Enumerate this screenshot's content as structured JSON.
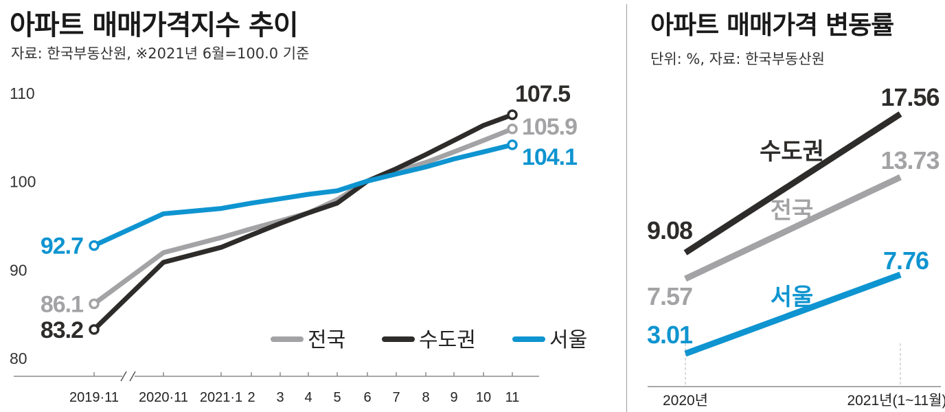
{
  "left_chart": {
    "title": "아파트 매매가격지수 추이",
    "subtitle": "자료: 한국부동산원, ※2021년 6월=100.0 기준"
  },
  "right_chart": {
    "title": "아파트 매매가격 변동률",
    "subtitle": "단위: %, 자료: 한국부동산원"
  },
  "chart_data": [
    {
      "type": "line",
      "title": "아파트 매매가격지수 추이",
      "categories": [
        "2019·11",
        "2020·11",
        "2021·1",
        "2",
        "3",
        "4",
        "5",
        "6",
        "7",
        "8",
        "9",
        "10",
        "11"
      ],
      "ylim": [
        80,
        110
      ],
      "yticks": [
        "80",
        "90",
        "100",
        "110"
      ],
      "grid": false,
      "legend_position": "bottom-right",
      "series": [
        {
          "name": "전국",
          "color": "#a3a3a5",
          "values": [
            86.1,
            91.9,
            93.6,
            94.6,
            95.5,
            96.4,
            97.9,
            100.0,
            101.1,
            102.1,
            103.3,
            104.6,
            105.9
          ],
          "start_label": "86.1",
          "end_label": "105.9"
        },
        {
          "name": "수도권",
          "color": "#2e2c2b",
          "values": [
            83.2,
            90.8,
            92.5,
            93.9,
            95.2,
            96.4,
            97.5,
            100.0,
            101.4,
            103.0,
            104.6,
            106.3,
            107.5
          ],
          "start_label": "83.2",
          "end_label": "107.5"
        },
        {
          "name": "서울",
          "color": "#0e94d0",
          "values": [
            92.7,
            96.3,
            96.9,
            97.5,
            98.0,
            98.5,
            98.9,
            100.0,
            100.8,
            101.6,
            102.5,
            103.3,
            104.1
          ],
          "start_label": "92.7",
          "end_label": "104.1"
        }
      ],
      "legend": [
        "전국",
        "수도권",
        "서울"
      ]
    },
    {
      "type": "line",
      "title": "아파트 매매가격 변동률",
      "unit": "%",
      "categories": [
        "2020년",
        "2021년(1~11월)"
      ],
      "series": [
        {
          "name": "수도권",
          "color": "#2e2c2b",
          "values": [
            9.08,
            17.56
          ],
          "labels": [
            "9.08",
            "17.56"
          ]
        },
        {
          "name": "전국",
          "color": "#a3a3a5",
          "values": [
            7.57,
            13.73
          ],
          "labels": [
            "7.57",
            "13.73"
          ]
        },
        {
          "name": "서울",
          "color": "#0e94d0",
          "values": [
            3.01,
            7.76
          ],
          "labels": [
            "3.01",
            "7.76"
          ]
        }
      ]
    }
  ]
}
